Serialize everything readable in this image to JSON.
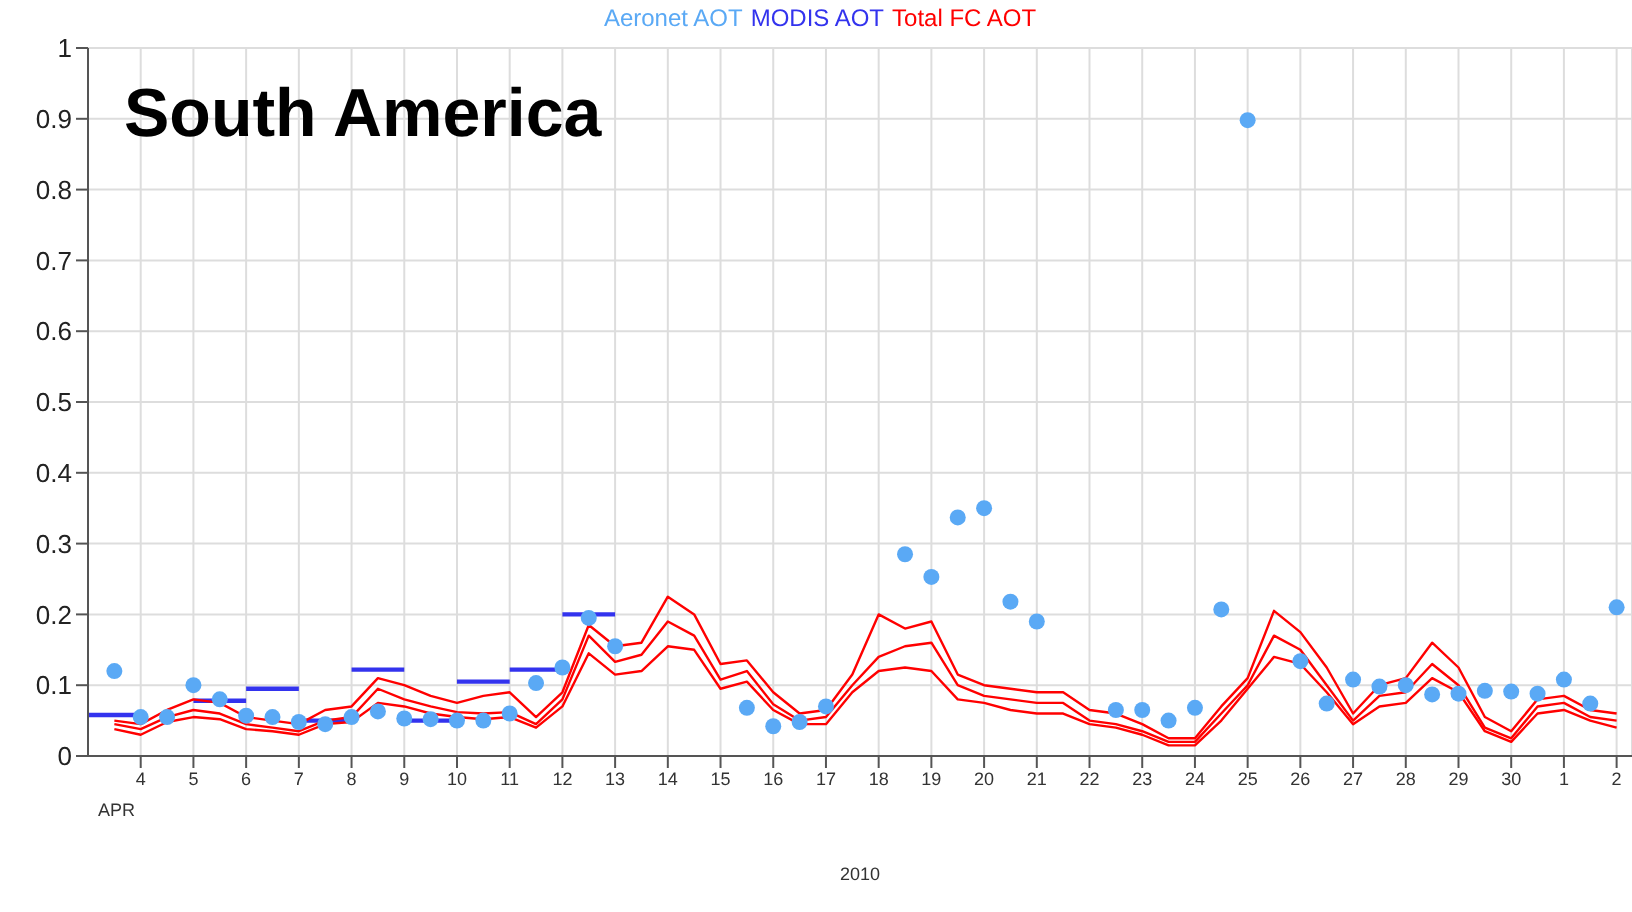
{
  "chart_data": {
    "type": "line",
    "title": "South America",
    "xlabel": "2010",
    "annotations": [
      "APR"
    ],
    "xlim": [
      "2010-04-03",
      "2010-05-02T07:00"
    ],
    "ylim": [
      0,
      1
    ],
    "xticks": [
      {
        "value": "2010-04-04",
        "label": "4"
      },
      {
        "value": "2010-04-05",
        "label": "5"
      },
      {
        "value": "2010-04-06",
        "label": "6"
      },
      {
        "value": "2010-04-07",
        "label": "7"
      },
      {
        "value": "2010-04-08",
        "label": "8"
      },
      {
        "value": "2010-04-09",
        "label": "9"
      },
      {
        "value": "2010-04-10",
        "label": "10"
      },
      {
        "value": "2010-04-11",
        "label": "11"
      },
      {
        "value": "2010-04-12",
        "label": "12"
      },
      {
        "value": "2010-04-13",
        "label": "13"
      },
      {
        "value": "2010-04-14",
        "label": "14"
      },
      {
        "value": "2010-04-15",
        "label": "15"
      },
      {
        "value": "2010-04-16",
        "label": "16"
      },
      {
        "value": "2010-04-17",
        "label": "17"
      },
      {
        "value": "2010-04-18",
        "label": "18"
      },
      {
        "value": "2010-04-19",
        "label": "19"
      },
      {
        "value": "2010-04-20",
        "label": "20"
      },
      {
        "value": "2010-04-21",
        "label": "21"
      },
      {
        "value": "2010-04-22",
        "label": "22"
      },
      {
        "value": "2010-04-23",
        "label": "23"
      },
      {
        "value": "2010-04-24",
        "label": "24"
      },
      {
        "value": "2010-04-25",
        "label": "25"
      },
      {
        "value": "2010-04-26",
        "label": "26"
      },
      {
        "value": "2010-04-27",
        "label": "27"
      },
      {
        "value": "2010-04-28",
        "label": "28"
      },
      {
        "value": "2010-04-29",
        "label": "29"
      },
      {
        "value": "2010-04-30",
        "label": "30"
      },
      {
        "value": "2010-05-01",
        "label": "1"
      },
      {
        "value": "2010-05-02",
        "label": "2"
      }
    ],
    "yticks": [
      0,
      0.1,
      0.2,
      0.3,
      0.4,
      0.5,
      0.6,
      0.7,
      0.8,
      0.9,
      1
    ],
    "grid": true,
    "legend": "top",
    "series": [
      {
        "name": "Aeronet AOT",
        "type": "scatter",
        "marker": "circle",
        "color": "#5aa9f5",
        "x": [
          "2010-04-03T12:00",
          "2010-04-04",
          "2010-04-04T12:00",
          "2010-04-05",
          "2010-04-05T12:00",
          "2010-04-06",
          "2010-04-06T12:00",
          "2010-04-07",
          "2010-04-07T12:00",
          "2010-04-08",
          "2010-04-08T12:00",
          "2010-04-09",
          "2010-04-09T12:00",
          "2010-04-10",
          "2010-04-10T12:00",
          "2010-04-11",
          "2010-04-11T12:00",
          "2010-04-12",
          "2010-04-12T12:00",
          "2010-04-13",
          "2010-04-15T12:00",
          "2010-04-16",
          "2010-04-16T12:00",
          "2010-04-17",
          "2010-04-18T12:00",
          "2010-04-19",
          "2010-04-19T12:00",
          "2010-04-20",
          "2010-04-20T12:00",
          "2010-04-21",
          "2010-04-22T12:00",
          "2010-04-23",
          "2010-04-23T12:00",
          "2010-04-24",
          "2010-04-24T12:00",
          "2010-04-25",
          "2010-04-26",
          "2010-04-26T12:00",
          "2010-04-27",
          "2010-04-27T12:00",
          "2010-04-28",
          "2010-04-28T12:00",
          "2010-04-29",
          "2010-04-29T12:00",
          "2010-04-30",
          "2010-04-30T12:00",
          "2010-05-01",
          "2010-05-01T12:00",
          "2010-05-02"
        ],
        "values": [
          0.12,
          0.055,
          0.055,
          0.1,
          0.08,
          0.057,
          0.055,
          0.048,
          0.045,
          0.055,
          0.063,
          0.053,
          0.052,
          0.05,
          0.05,
          0.06,
          0.103,
          0.125,
          0.195,
          0.155,
          0.068,
          0.042,
          0.048,
          0.07,
          0.285,
          0.253,
          0.337,
          0.35,
          0.218,
          0.19,
          0.065,
          0.065,
          0.05,
          0.068,
          0.207,
          0.898,
          0.134,
          0.074,
          0.108,
          0.098,
          0.1,
          0.087,
          0.088,
          0.092,
          0.091,
          0.088,
          0.108,
          0.074,
          0.21
        ]
      },
      {
        "name": "MODIS AOT",
        "color": "#3333ee",
        "x": [
          "2010-04-03",
          "2010-04-04"
        ],
        "values": [
          0.058,
          0.058
        ]
      },
      {
        "color": "#3333ee",
        "x": [
          "2010-04-05",
          "2010-04-06"
        ],
        "values": [
          0.078,
          0.078
        ]
      },
      {
        "color": "#3333ee",
        "x": [
          "2010-04-06",
          "2010-04-07"
        ],
        "values": [
          0.095,
          0.095
        ]
      },
      {
        "color": "#3333ee",
        "x": [
          "2010-04-07",
          "2010-04-08"
        ],
        "values": [
          0.05,
          0.05
        ]
      },
      {
        "color": "#3333ee",
        "x": [
          "2010-04-08",
          "2010-04-09"
        ],
        "values": [
          0.122,
          0.122
        ]
      },
      {
        "color": "#3333ee",
        "x": [
          "2010-04-09",
          "2010-04-10"
        ],
        "values": [
          0.05,
          0.05
        ]
      },
      {
        "color": "#3333ee",
        "x": [
          "2010-04-10",
          "2010-04-11"
        ],
        "values": [
          0.105,
          0.105
        ]
      },
      {
        "color": "#3333ee",
        "x": [
          "2010-04-11",
          "2010-04-12"
        ],
        "values": [
          0.122,
          0.122
        ]
      },
      {
        "color": "#3333ee",
        "x": [
          "2010-04-12",
          "2010-04-13"
        ],
        "values": [
          0.2,
          0.2
        ]
      },
      {
        "name": "Total FC AOT",
        "color": "#ff0000",
        "x": [
          "2010-04-03T12:00",
          "2010-04-04",
          "2010-04-04T12:00",
          "2010-04-05",
          "2010-04-05T12:00",
          "2010-04-06",
          "2010-04-06T12:00",
          "2010-04-07",
          "2010-04-07T12:00",
          "2010-04-08",
          "2010-04-08T12:00",
          "2010-04-09",
          "2010-04-09T12:00",
          "2010-04-10",
          "2010-04-10T12:00",
          "2010-04-11",
          "2010-04-11T12:00",
          "2010-04-12",
          "2010-04-12T12:00",
          "2010-04-13",
          "2010-04-13T12:00",
          "2010-04-14",
          "2010-04-14T12:00",
          "2010-04-15",
          "2010-04-15T12:00",
          "2010-04-16",
          "2010-04-16T12:00",
          "2010-04-17",
          "2010-04-17T12:00",
          "2010-04-18",
          "2010-04-18T12:00",
          "2010-04-19",
          "2010-04-19T12:00",
          "2010-04-20",
          "2010-04-20T12:00",
          "2010-04-21",
          "2010-04-21T12:00",
          "2010-04-22",
          "2010-04-22T12:00",
          "2010-04-23",
          "2010-04-23T12:00",
          "2010-04-24",
          "2010-04-24T12:00",
          "2010-04-25",
          "2010-04-25T12:00",
          "2010-04-26",
          "2010-04-26T12:00",
          "2010-04-27",
          "2010-04-27T12:00",
          "2010-04-28",
          "2010-04-28T12:00",
          "2010-04-29",
          "2010-04-29T12:00",
          "2010-04-30",
          "2010-04-30T12:00",
          "2010-05-01",
          "2010-05-01T12:00",
          "2010-05-02"
        ],
        "values": [
          0.045,
          0.038,
          0.055,
          0.065,
          0.06,
          0.045,
          0.04,
          0.035,
          0.05,
          0.055,
          0.095,
          0.08,
          0.07,
          0.062,
          0.06,
          0.062,
          0.045,
          0.08,
          0.17,
          0.133,
          0.143,
          0.19,
          0.17,
          0.108,
          0.12,
          0.073,
          0.05,
          0.055,
          0.1,
          0.14,
          0.155,
          0.16,
          0.1,
          0.085,
          0.08,
          0.075,
          0.075,
          0.05,
          0.045,
          0.035,
          0.02,
          0.02,
          0.06,
          0.1,
          0.17,
          0.15,
          0.1,
          0.05,
          0.085,
          0.09,
          0.13,
          0.1,
          0.04,
          0.025,
          0.07,
          0.075,
          0.055,
          0.05
        ]
      },
      {
        "color": "#ff0000",
        "x": [
          "2010-04-03T12:00",
          "2010-04-04",
          "2010-04-04T12:00",
          "2010-04-05",
          "2010-04-05T12:00",
          "2010-04-06",
          "2010-04-06T12:00",
          "2010-04-07",
          "2010-04-07T12:00",
          "2010-04-08",
          "2010-04-08T12:00",
          "2010-04-09",
          "2010-04-09T12:00",
          "2010-04-10",
          "2010-04-10T12:00",
          "2010-04-11",
          "2010-04-11T12:00",
          "2010-04-12",
          "2010-04-12T12:00",
          "2010-04-13",
          "2010-04-13T12:00",
          "2010-04-14",
          "2010-04-14T12:00",
          "2010-04-15",
          "2010-04-15T12:00",
          "2010-04-16",
          "2010-04-16T12:00",
          "2010-04-17",
          "2010-04-17T12:00",
          "2010-04-18",
          "2010-04-18T12:00",
          "2010-04-19",
          "2010-04-19T12:00",
          "2010-04-20",
          "2010-04-20T12:00",
          "2010-04-21",
          "2010-04-21T12:00",
          "2010-04-22",
          "2010-04-22T12:00",
          "2010-04-23",
          "2010-04-23T12:00",
          "2010-04-24",
          "2010-04-24T12:00",
          "2010-04-25",
          "2010-04-25T12:00",
          "2010-04-26",
          "2010-04-26T12:00",
          "2010-04-27",
          "2010-04-27T12:00",
          "2010-04-28",
          "2010-04-28T12:00",
          "2010-04-29",
          "2010-04-29T12:00",
          "2010-04-30",
          "2010-04-30T12:00",
          "2010-05-01",
          "2010-05-01T12:00",
          "2010-05-02"
        ],
        "values": [
          0.05,
          0.045,
          0.065,
          0.08,
          0.075,
          0.055,
          0.05,
          0.045,
          0.065,
          0.07,
          0.11,
          0.1,
          0.085,
          0.075,
          0.085,
          0.09,
          0.055,
          0.09,
          0.185,
          0.155,
          0.16,
          0.225,
          0.2,
          0.13,
          0.135,
          0.09,
          0.06,
          0.065,
          0.115,
          0.2,
          0.18,
          0.19,
          0.115,
          0.1,
          0.095,
          0.09,
          0.09,
          0.065,
          0.06,
          0.045,
          0.025,
          0.025,
          0.07,
          0.11,
          0.205,
          0.175,
          0.125,
          0.06,
          0.1,
          0.11,
          0.16,
          0.125,
          0.055,
          0.035,
          0.08,
          0.085,
          0.065,
          0.06
        ]
      },
      {
        "color": "#ff0000",
        "x": [
          "2010-04-03T12:00",
          "2010-04-04",
          "2010-04-04T12:00",
          "2010-04-05",
          "2010-04-05T12:00",
          "2010-04-06",
          "2010-04-06T12:00",
          "2010-04-07",
          "2010-04-07T12:00",
          "2010-04-08",
          "2010-04-08T12:00",
          "2010-04-09",
          "2010-04-09T12:00",
          "2010-04-10",
          "2010-04-10T12:00",
          "2010-04-11",
          "2010-04-11T12:00",
          "2010-04-12",
          "2010-04-12T12:00",
          "2010-04-13",
          "2010-04-13T12:00",
          "2010-04-14",
          "2010-04-14T12:00",
          "2010-04-15",
          "2010-04-15T12:00",
          "2010-04-16",
          "2010-04-16T12:00",
          "2010-04-17",
          "2010-04-17T12:00",
          "2010-04-18",
          "2010-04-18T12:00",
          "2010-04-19",
          "2010-04-19T12:00",
          "2010-04-20",
          "2010-04-20T12:00",
          "2010-04-21",
          "2010-04-21T12:00",
          "2010-04-22",
          "2010-04-22T12:00",
          "2010-04-23",
          "2010-04-23T12:00",
          "2010-04-24",
          "2010-04-24T12:00",
          "2010-04-25",
          "2010-04-25T12:00",
          "2010-04-26",
          "2010-04-26T12:00",
          "2010-04-27",
          "2010-04-27T12:00",
          "2010-04-28",
          "2010-04-28T12:00",
          "2010-04-29",
          "2010-04-29T12:00",
          "2010-04-30",
          "2010-04-30T12:00",
          "2010-05-01",
          "2010-05-01T12:00",
          "2010-05-02"
        ],
        "values": [
          0.038,
          0.03,
          0.048,
          0.055,
          0.052,
          0.038,
          0.035,
          0.03,
          0.045,
          0.048,
          0.075,
          0.07,
          0.06,
          0.055,
          0.052,
          0.055,
          0.04,
          0.07,
          0.145,
          0.115,
          0.12,
          0.155,
          0.15,
          0.095,
          0.105,
          0.065,
          0.045,
          0.045,
          0.09,
          0.12,
          0.125,
          0.12,
          0.08,
          0.075,
          0.065,
          0.06,
          0.06,
          0.045,
          0.04,
          0.03,
          0.015,
          0.015,
          0.05,
          0.095,
          0.14,
          0.13,
          0.09,
          0.045,
          0.07,
          0.075,
          0.11,
          0.09,
          0.035,
          0.02,
          0.06,
          0.065,
          0.05,
          0.04
        ]
      }
    ]
  }
}
